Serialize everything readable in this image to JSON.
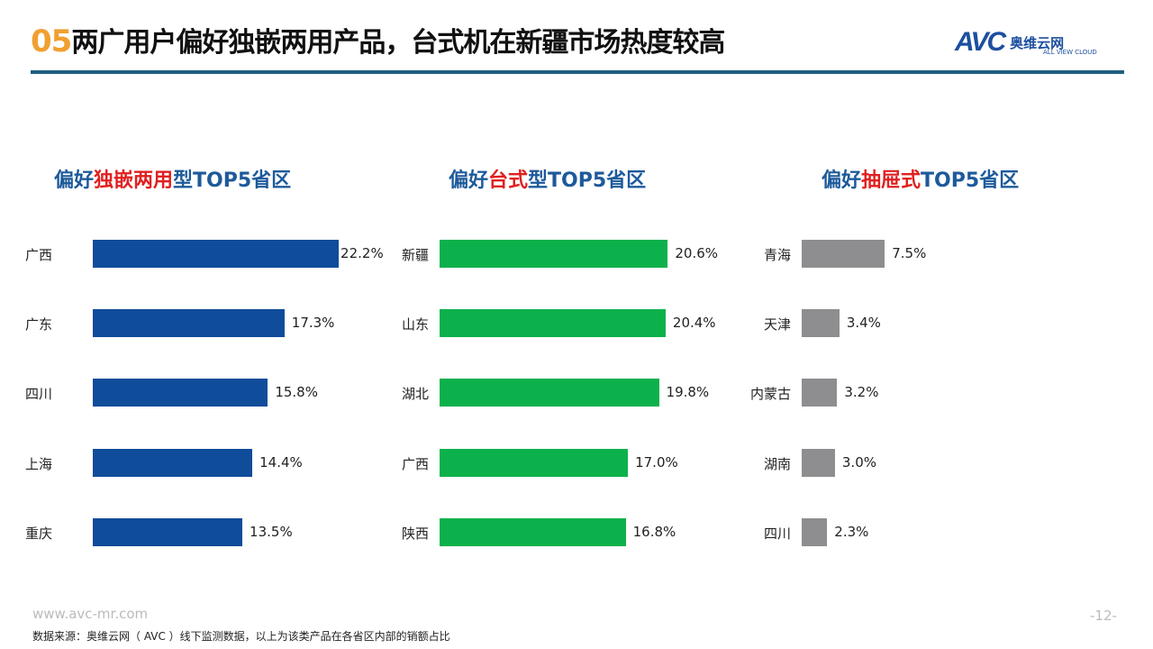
{
  "header": {
    "num": "05",
    "title": "两广用户偏好独嵌两用产品，台式机在新疆市场热度较高"
  },
  "logo": {
    "mark": "AVC",
    "cn": "奥维云网",
    "en": "ALL VIEW CLOUD"
  },
  "footer": {
    "url": "www.avc-mr.com",
    "page": "-12-",
    "source": "数据来源：奥维云网（ AVC ）线下监测数据，以上为该类产品在各省区内部的销额占比"
  },
  "chart_data": [
    {
      "type": "bar",
      "title_prefix": "偏好",
      "title_highlight": "独嵌两用",
      "title_suffix": "型TOP5省区",
      "color": "#0f4c9a",
      "categories": [
        "广西",
        "广东",
        "四川",
        "上海",
        "重庆"
      ],
      "values": [
        22.2,
        17.3,
        15.8,
        14.4,
        13.5
      ],
      "unit": "%"
    },
    {
      "type": "bar",
      "title_prefix": "偏好",
      "title_highlight": "台式",
      "title_suffix": "型TOP5省区",
      "color": "#0db14b",
      "categories": [
        "新疆",
        "山东",
        "湖北",
        "广西",
        "陕西"
      ],
      "values": [
        20.6,
        20.4,
        19.8,
        17.0,
        16.8
      ],
      "unit": "%"
    },
    {
      "type": "bar",
      "title_prefix": "偏好",
      "title_highlight": "抽屉式",
      "title_suffix": "TOP5省区",
      "color": "#8e8e90",
      "categories": [
        "青海",
        "天津",
        "内蒙古",
        "湖南",
        "四川"
      ],
      "values": [
        7.5,
        3.4,
        3.2,
        3.0,
        2.3
      ],
      "unit": "%"
    }
  ]
}
